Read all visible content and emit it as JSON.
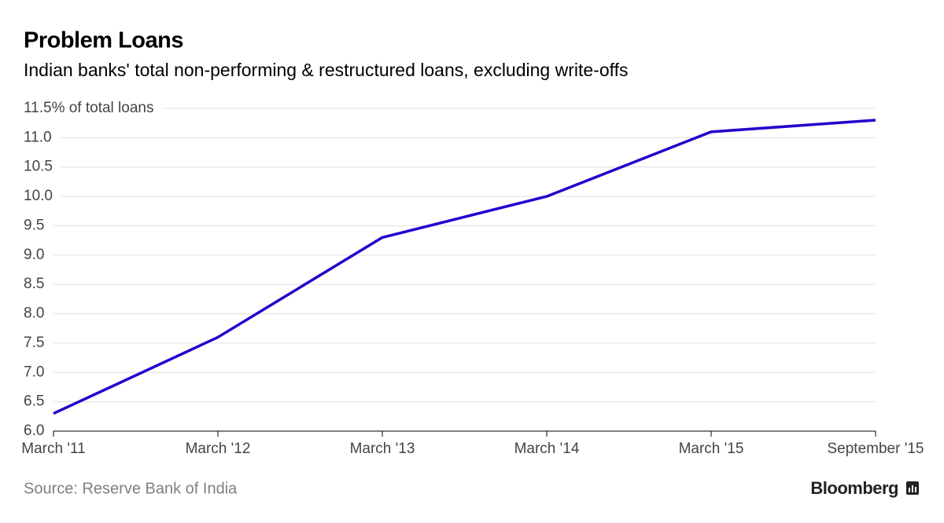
{
  "chart_data": {
    "type": "line",
    "title": "Problem Loans",
    "subtitle": "Indian banks' total non-performing & restructured loans, excluding write-offs",
    "categories": [
      "March '11",
      "March '12",
      "March '13",
      "March '14",
      "March '15",
      "September '15"
    ],
    "series": [
      {
        "name": "Problem loans",
        "color": "#2200cc",
        "values": [
          6.3,
          7.6,
          9.3,
          10.0,
          11.1,
          11.3
        ]
      }
    ],
    "ylim": [
      6,
      11.5
    ],
    "yticks": [
      {
        "value": 6,
        "label": "6.0"
      },
      6.5,
      {
        "value": 7,
        "label": "7.0"
      },
      7.5,
      {
        "value": 8,
        "label": "8.0"
      },
      8.5,
      {
        "value": 9,
        "label": "9.0"
      },
      9.5,
      {
        "value": 10,
        "label": "10.0"
      },
      10.5,
      {
        "value": 11,
        "label": "11.0"
      },
      {
        "value": 11.5,
        "label": "11.5% of total loans"
      }
    ],
    "grid": true,
    "source": "Source: Reserve Bank of India",
    "logo": "Bloomberg"
  }
}
